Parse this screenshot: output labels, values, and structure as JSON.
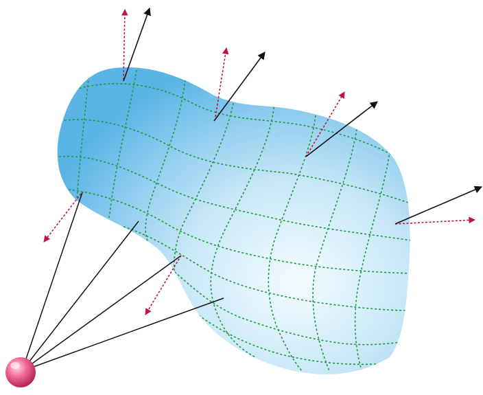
{
  "diagram": {
    "colors": {
      "surface_dark": "#5ab4e6",
      "surface_light": "#f4fbff",
      "grid": "#1f9a3e",
      "normal_arrow": "#111111",
      "dotted_arrow": "#c0143c",
      "sphere_light": "#ffd6e4",
      "sphere_mid": "#f06a98",
      "sphere_dark": "#b01e4e"
    },
    "icons": {
      "source": "point-charge-sphere",
      "surface": "closed-gaussian-surface"
    }
  }
}
